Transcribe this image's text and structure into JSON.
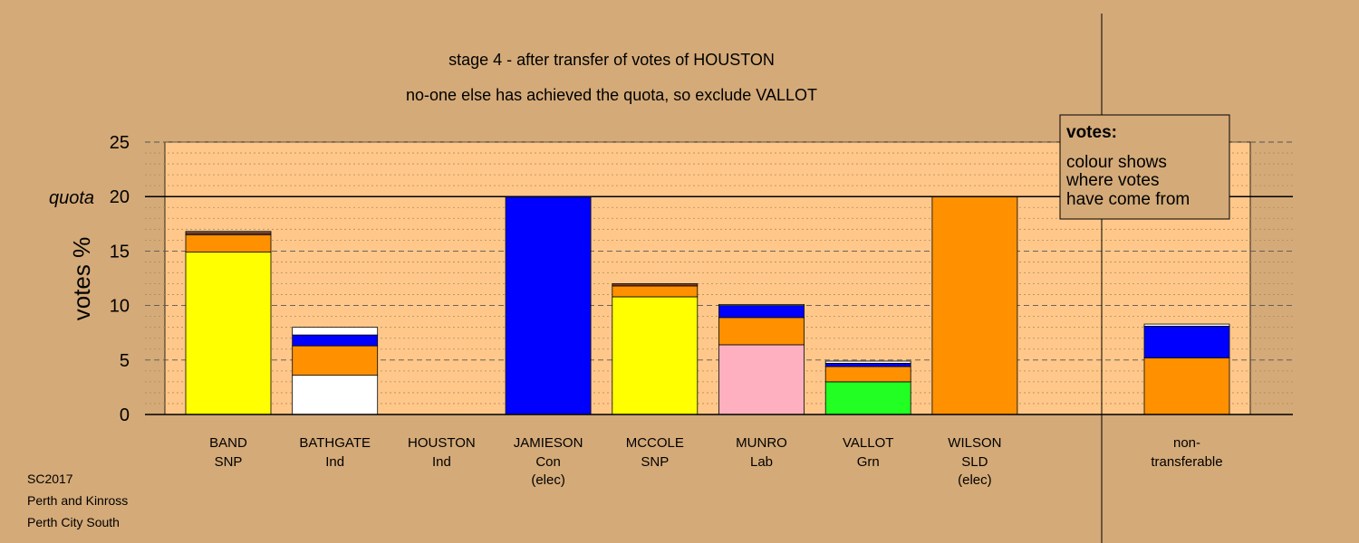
{
  "chart_data": {
    "type": "bar",
    "title": "stage 4 - after transfer of votes of HOUSTON",
    "subtitle": "no-one else has achieved the quota, so exclude VALLOT",
    "ylabel": "votes %",
    "ylim": [
      0,
      25
    ],
    "yticks": [
      0,
      5,
      10,
      15,
      20,
      25
    ],
    "quota_label": "quota",
    "quota": 20,
    "colors": {
      "background": "#d4aa78",
      "plot": "#ffc88a",
      "SNP": "#ffff00",
      "Ind": "#ffffff",
      "Con": "#0000ff",
      "SLD": "#ff9100",
      "Lab": "#ffb0c0",
      "Grn": "#22ff22",
      "dark": "#8b3a1a"
    },
    "legend": {
      "title": "votes:",
      "lines": [
        "colour shows",
        "where votes",
        "have come from"
      ]
    },
    "candidates": [
      {
        "name": "BAND",
        "party": "SNP",
        "note": "",
        "segments": [
          {
            "color": "#ffff00",
            "value": 14.9
          },
          {
            "color": "#ff9100",
            "value": 1.6
          },
          {
            "color": "#8b3a1a",
            "value": 0.2
          },
          {
            "color": "#ffffff",
            "value": 0.1
          }
        ]
      },
      {
        "name": "BATHGATE",
        "party": "Ind",
        "note": "",
        "segments": [
          {
            "color": "#ffffff",
            "value": 3.6
          },
          {
            "color": "#ff9100",
            "value": 2.7
          },
          {
            "color": "#0000ff",
            "value": 1.0
          },
          {
            "color": "#ffffff",
            "value": 0.7
          }
        ]
      },
      {
        "name": "HOUSTON",
        "party": "Ind",
        "note": "",
        "segments": []
      },
      {
        "name": "JAMIESON",
        "party": "Con",
        "note": "(elec)",
        "segments": [
          {
            "color": "#0000ff",
            "value": 20
          }
        ]
      },
      {
        "name": "MCCOLE",
        "party": "SNP",
        "note": "",
        "segments": [
          {
            "color": "#ffff00",
            "value": 10.8
          },
          {
            "color": "#ff9100",
            "value": 1.0
          },
          {
            "color": "#8b3a1a",
            "value": 0.2
          }
        ]
      },
      {
        "name": "MUNRO",
        "party": "Lab",
        "note": "",
        "segments": [
          {
            "color": "#ffb0c0",
            "value": 6.4
          },
          {
            "color": "#ff9100",
            "value": 2.5
          },
          {
            "color": "#0000ff",
            "value": 1.1
          },
          {
            "color": "#ffffff",
            "value": 0.1
          }
        ]
      },
      {
        "name": "VALLOT",
        "party": "Grn",
        "note": "",
        "segments": [
          {
            "color": "#22ff22",
            "value": 3.0
          },
          {
            "color": "#ff9100",
            "value": 1.4
          },
          {
            "color": "#0000ff",
            "value": 0.3
          },
          {
            "color": "#ffffff",
            "value": 0.2
          }
        ]
      },
      {
        "name": "WILSON",
        "party": "SLD",
        "note": "(elec)",
        "segments": [
          {
            "color": "#ff9100",
            "value": 20
          }
        ]
      },
      {
        "name": "non-",
        "party": "transferable",
        "note": "",
        "segments": [
          {
            "color": "#ff9100",
            "value": 5.2
          },
          {
            "color": "#0000ff",
            "value": 2.9
          },
          {
            "color": "#ffffff",
            "value": 0.2
          }
        ]
      }
    ]
  },
  "footer": {
    "line1": "SC2017",
    "line2": "Perth and Kinross",
    "line3": "Perth City South"
  }
}
